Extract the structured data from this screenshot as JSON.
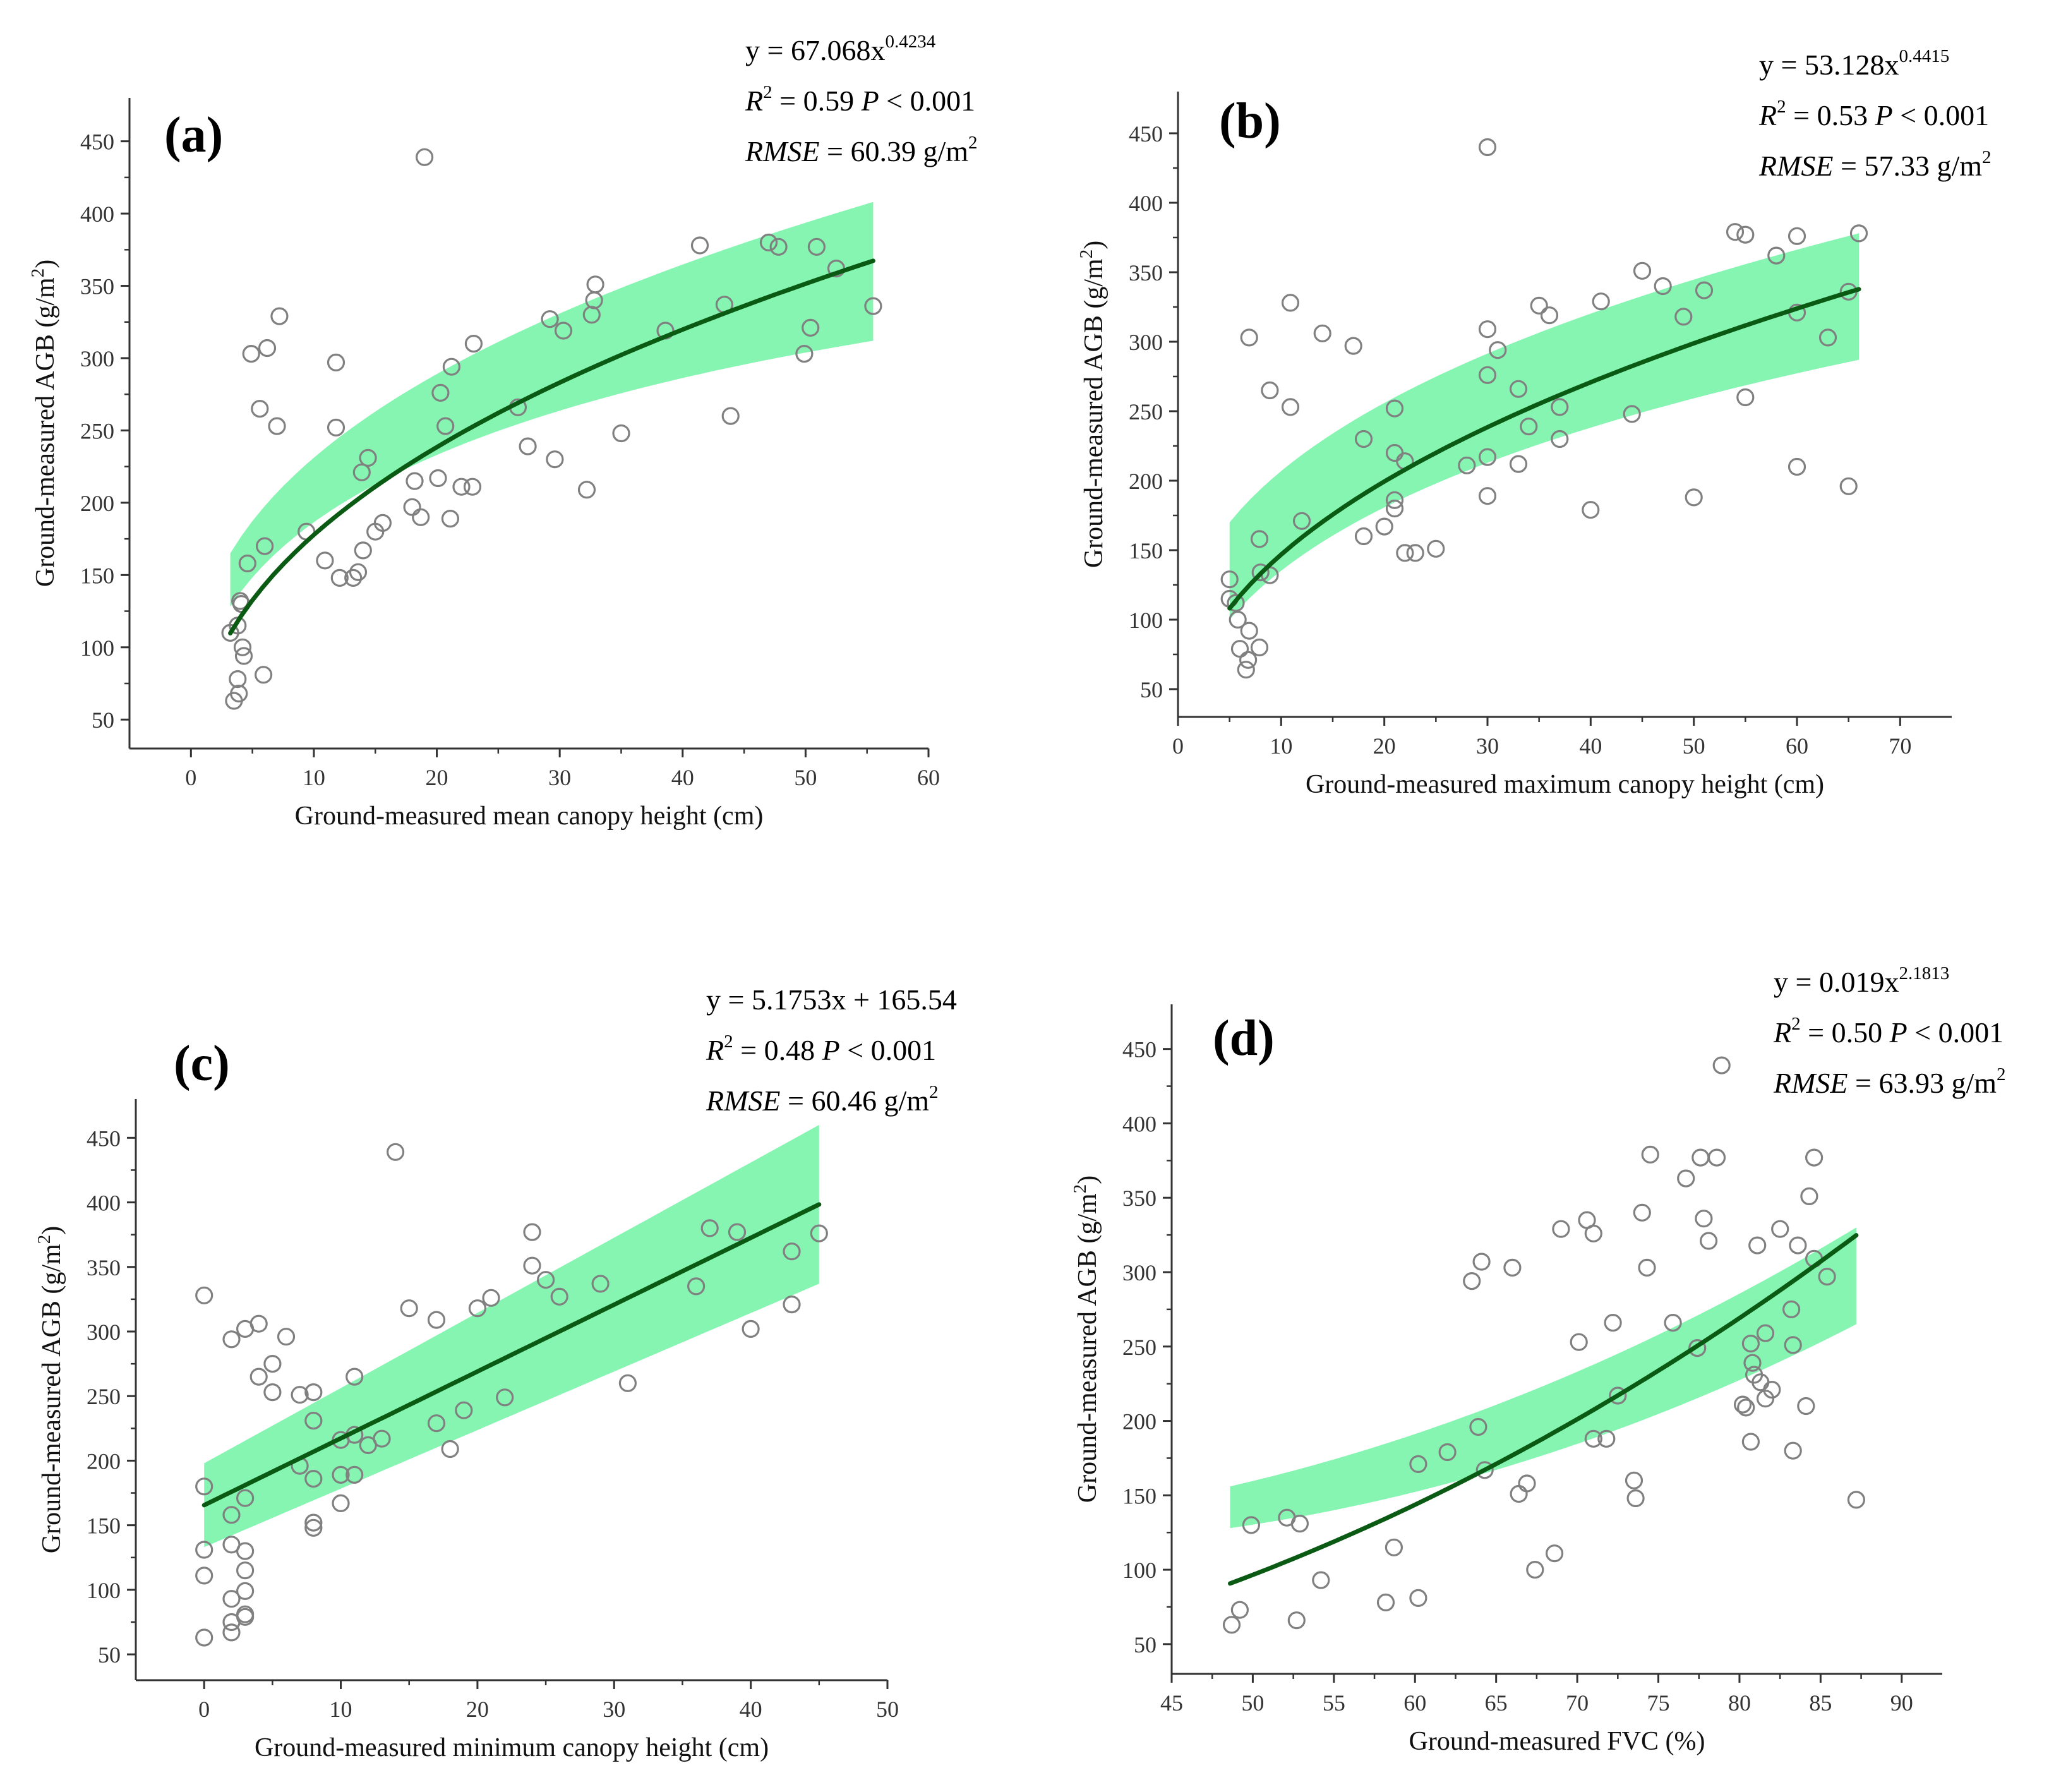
{
  "figure": {
    "colors": {
      "band": "#86f5b2",
      "line": "#0a5a14",
      "point": "#808080",
      "axis": "#333333"
    }
  },
  "chart_data": [
    {
      "id": "a",
      "type": "scatter",
      "label": "(a)",
      "xlabel": "Ground-measured mean canopy height (cm)",
      "ylabel": "Ground-measured AGB (g/m2)",
      "ylabel_parts": [
        "Ground-measured AGB (g/m",
        "2",
        ")"
      ],
      "xlim": [
        -5,
        60
      ],
      "ylim": [
        30,
        480
      ],
      "xticks": [
        0,
        10,
        20,
        30,
        40,
        50,
        60
      ],
      "yticks": [
        50,
        100,
        150,
        200,
        250,
        300,
        350,
        400,
        450
      ],
      "equation": {
        "line1_prefix": "y = 67.068x",
        "line1_sup": "0.4234",
        "line1_suffix": "",
        "r2": "0.59",
        "p": "< 0.001",
        "rmse": "60.39",
        "unit": "g/m",
        "unit_sup": "2"
      },
      "fit": {
        "kind": "power",
        "a": 67.068,
        "b": 0.4234,
        "x_range": [
          3.2,
          55.5
        ],
        "band_lower": [
          128,
          312
        ],
        "band_upper": [
          165,
          408
        ]
      },
      "points": [
        [
          3.2,
          110
        ],
        [
          3.5,
          63
        ],
        [
          3.8,
          115
        ],
        [
          3.8,
          78
        ],
        [
          3.9,
          68
        ],
        [
          4,
          132
        ],
        [
          4.1,
          130
        ],
        [
          4.2,
          100
        ],
        [
          4.3,
          94
        ],
        [
          4.6,
          158
        ],
        [
          4.9,
          303
        ],
        [
          5.6,
          265
        ],
        [
          5.9,
          81
        ],
        [
          6,
          170
        ],
        [
          6.2,
          307
        ],
        [
          7,
          253
        ],
        [
          7.2,
          329
        ],
        [
          9.4,
          180
        ],
        [
          10.9,
          160
        ],
        [
          11.8,
          297
        ],
        [
          11.8,
          252
        ],
        [
          12.1,
          148
        ],
        [
          13.2,
          148
        ],
        [
          13.6,
          152
        ],
        [
          13.9,
          221
        ],
        [
          14,
          167
        ],
        [
          14.4,
          231
        ],
        [
          15,
          180
        ],
        [
          15.6,
          186
        ],
        [
          18,
          197
        ],
        [
          18.2,
          215
        ],
        [
          18.7,
          190
        ],
        [
          19,
          439
        ],
        [
          20.1,
          217
        ],
        [
          20.3,
          276
        ],
        [
          20.7,
          253
        ],
        [
          21.1,
          189
        ],
        [
          21.2,
          294
        ],
        [
          22,
          211
        ],
        [
          22.9,
          211
        ],
        [
          23,
          310
        ],
        [
          26.6,
          266
        ],
        [
          27.4,
          239
        ],
        [
          29.2,
          327
        ],
        [
          29.6,
          230
        ],
        [
          30.3,
          319
        ],
        [
          32.2,
          209
        ],
        [
          32.6,
          330
        ],
        [
          32.8,
          340
        ],
        [
          32.9,
          351
        ],
        [
          35,
          248
        ],
        [
          38.6,
          319
        ],
        [
          41.4,
          378
        ],
        [
          43.4,
          337
        ],
        [
          43.9,
          260
        ],
        [
          47,
          380
        ],
        [
          47.8,
          377
        ],
        [
          49.9,
          303
        ],
        [
          50.4,
          321
        ],
        [
          50.9,
          377
        ],
        [
          52.5,
          362
        ],
        [
          55.5,
          336
        ]
      ]
    },
    {
      "id": "b",
      "type": "scatter",
      "label": "(b)",
      "xlabel": "Ground-measured maximum canopy height (cm)",
      "ylabel": "Ground-measured AGB (g/m2)",
      "ylabel_parts": [
        "Ground-measured AGB (g/m",
        "2",
        ")"
      ],
      "xlim": [
        0,
        75
      ],
      "ylim": [
        30,
        480
      ],
      "xticks": [
        0,
        10,
        20,
        30,
        40,
        50,
        60,
        70
      ],
      "yticks": [
        50,
        100,
        150,
        200,
        250,
        300,
        350,
        400,
        450
      ],
      "equation": {
        "line1_prefix": "y = 53.128x",
        "line1_sup": "0.4415",
        "line1_suffix": "",
        "r2": "0.53",
        "p": "< 0.001",
        "rmse": "57.33",
        "unit": "g/m",
        "unit_sup": "2"
      },
      "fit": {
        "kind": "power",
        "a": 53.128,
        "b": 0.4415,
        "x_range": [
          5,
          66
        ],
        "band_lower": [
          100,
          287
        ],
        "band_upper": [
          170,
          378
        ]
      },
      "points": [
        [
          5,
          129
        ],
        [
          5,
          115
        ],
        [
          5.6,
          112
        ],
        [
          5.8,
          100
        ],
        [
          6,
          79
        ],
        [
          6.6,
          64
        ],
        [
          6.8,
          71
        ],
        [
          6.9,
          92
        ],
        [
          6.9,
          303
        ],
        [
          7.9,
          80
        ],
        [
          7.9,
          158
        ],
        [
          8,
          134
        ],
        [
          8.9,
          132
        ],
        [
          8.9,
          265
        ],
        [
          10.9,
          253
        ],
        [
          10.9,
          328
        ],
        [
          12,
          171
        ],
        [
          14,
          306
        ],
        [
          17,
          297
        ],
        [
          18,
          230
        ],
        [
          18,
          160
        ],
        [
          20,
          167
        ],
        [
          21,
          252
        ],
        [
          21,
          220
        ],
        [
          21,
          186
        ],
        [
          21,
          180
        ],
        [
          22,
          214
        ],
        [
          22,
          148
        ],
        [
          23,
          148
        ],
        [
          25,
          151
        ],
        [
          28,
          211
        ],
        [
          30,
          440
        ],
        [
          30,
          309
        ],
        [
          30,
          276
        ],
        [
          30,
          217
        ],
        [
          30,
          189
        ],
        [
          31,
          294
        ],
        [
          33,
          266
        ],
        [
          33,
          212
        ],
        [
          34,
          239
        ],
        [
          35,
          326
        ],
        [
          36,
          319
        ],
        [
          37,
          253
        ],
        [
          37,
          230
        ],
        [
          40,
          179
        ],
        [
          41,
          329
        ],
        [
          44,
          248
        ],
        [
          45,
          351
        ],
        [
          47,
          340
        ],
        [
          49,
          318
        ],
        [
          50,
          188
        ],
        [
          51,
          337
        ],
        [
          54,
          379
        ],
        [
          55,
          377
        ],
        [
          55,
          260
        ],
        [
          58,
          362
        ],
        [
          60,
          376
        ],
        [
          60,
          321
        ],
        [
          60,
          210
        ],
        [
          63,
          303
        ],
        [
          65,
          336
        ],
        [
          65,
          196
        ],
        [
          66,
          378
        ]
      ]
    },
    {
      "id": "c",
      "type": "scatter",
      "label": "(c)",
      "xlabel": "Ground-measured minimum canopy height (cm)",
      "ylabel": "Ground-measured AGB (g/m2)",
      "ylabel_parts": [
        "Ground-measured AGB (g/m",
        "2",
        ")"
      ],
      "xlim": [
        -5,
        50
      ],
      "ylim": [
        30,
        480
      ],
      "xticks": [
        0,
        10,
        20,
        30,
        40,
        50
      ],
      "yticks": [
        50,
        100,
        150,
        200,
        250,
        300,
        350,
        400,
        450
      ],
      "equation": {
        "line1_prefix": "y = 5.1753x + 165.54",
        "line1_sup": "",
        "line1_suffix": "",
        "r2": "0.48",
        "p": "< 0.001",
        "rmse": "60.46",
        "unit": "g/m",
        "unit_sup": "2"
      },
      "fit": {
        "kind": "linear",
        "a": 5.1753,
        "b": 165.54,
        "x_range": [
          0,
          45
        ],
        "band_lower": [
          133,
          337
        ],
        "band_upper": [
          198,
          460
        ]
      },
      "points": [
        [
          0,
          63
        ],
        [
          0,
          111
        ],
        [
          0,
          131
        ],
        [
          0,
          180
        ],
        [
          0,
          328
        ],
        [
          2,
          67
        ],
        [
          2,
          75
        ],
        [
          2,
          93
        ],
        [
          2,
          135
        ],
        [
          2,
          158
        ],
        [
          2,
          294
        ],
        [
          3,
          79
        ],
        [
          3,
          81
        ],
        [
          3,
          99
        ],
        [
          3,
          115
        ],
        [
          3,
          130
        ],
        [
          3,
          171
        ],
        [
          3,
          302
        ],
        [
          4,
          306
        ],
        [
          4,
          265
        ],
        [
          5,
          253
        ],
        [
          5,
          275
        ],
        [
          6,
          296
        ],
        [
          7,
          251
        ],
        [
          7,
          196
        ],
        [
          8,
          253
        ],
        [
          8,
          231
        ],
        [
          8,
          186
        ],
        [
          8,
          152
        ],
        [
          8,
          148
        ],
        [
          10,
          216
        ],
        [
          10,
          189
        ],
        [
          10,
          167
        ],
        [
          11,
          265
        ],
        [
          11,
          220
        ],
        [
          11,
          189
        ],
        [
          12,
          212
        ],
        [
          13,
          217
        ],
        [
          14,
          439
        ],
        [
          15,
          318
        ],
        [
          17,
          309
        ],
        [
          17,
          229
        ],
        [
          18,
          209
        ],
        [
          19,
          239
        ],
        [
          20,
          318
        ],
        [
          21,
          326
        ],
        [
          22,
          249
        ],
        [
          24,
          377
        ],
        [
          24,
          351
        ],
        [
          25,
          340
        ],
        [
          26,
          327
        ],
        [
          29,
          337
        ],
        [
          31,
          260
        ],
        [
          36,
          335
        ],
        [
          37,
          380
        ],
        [
          39,
          377
        ],
        [
          40,
          302
        ],
        [
          43,
          362
        ],
        [
          43,
          321
        ],
        [
          45,
          376
        ]
      ]
    },
    {
      "id": "d",
      "type": "scatter",
      "label": "(d)",
      "xlabel": "Ground-measured FVC (%)",
      "ylabel": "Ground-measured AGB (g/m2)",
      "ylabel_parts": [
        "Ground-measured AGB (g/m",
        "2",
        ")"
      ],
      "xlim": [
        45,
        92.5
      ],
      "ylim": [
        30,
        480
      ],
      "xticks": [
        45,
        50,
        55,
        60,
        65,
        70,
        75,
        80,
        85,
        90
      ],
      "yticks": [
        50,
        100,
        150,
        200,
        250,
        300,
        350,
        400,
        450
      ],
      "equation": {
        "line1_prefix": "y = 0.019x",
        "line1_sup": "2.1813",
        "line1_suffix": "",
        "r2": "0.50",
        "p": "< 0.001",
        "rmse": "63.93",
        "unit": "g/m",
        "unit_sup": "2"
      },
      "fit": {
        "kind": "power",
        "a": 0.019,
        "b": 2.1813,
        "x_range": [
          48.6,
          87.2
        ],
        "band_lower": [
          128,
          265
        ],
        "band_upper": [
          156,
          330
        ]
      },
      "points": [
        [
          48.7,
          63
        ],
        [
          49.2,
          73
        ],
        [
          49.9,
          130
        ],
        [
          52.1,
          135
        ],
        [
          52.7,
          66
        ],
        [
          52.9,
          131
        ],
        [
          54.2,
          93
        ],
        [
          58.2,
          78
        ],
        [
          58.7,
          115
        ],
        [
          60.2,
          171
        ],
        [
          60.2,
          81
        ],
        [
          62,
          179
        ],
        [
          63.5,
          294
        ],
        [
          63.9,
          196
        ],
        [
          64.1,
          307
        ],
        [
          64.3,
          167
        ],
        [
          66,
          303
        ],
        [
          66.4,
          151
        ],
        [
          66.9,
          158
        ],
        [
          67.4,
          100
        ],
        [
          68.6,
          111
        ],
        [
          69,
          329
        ],
        [
          70.1,
          253
        ],
        [
          70.6,
          335
        ],
        [
          71,
          326
        ],
        [
          71,
          188
        ],
        [
          71.8,
          188
        ],
        [
          72.2,
          266
        ],
        [
          72.5,
          217
        ],
        [
          73.5,
          160
        ],
        [
          73.6,
          148
        ],
        [
          74,
          340
        ],
        [
          74.3,
          303
        ],
        [
          74.5,
          379
        ],
        [
          75.9,
          266
        ],
        [
          76.7,
          363
        ],
        [
          77.4,
          249
        ],
        [
          77.6,
          377
        ],
        [
          77.8,
          336
        ],
        [
          78.1,
          321
        ],
        [
          78.6,
          377
        ],
        [
          78.9,
          439
        ],
        [
          80.2,
          211
        ],
        [
          80.4,
          209
        ],
        [
          80.7,
          186
        ],
        [
          80.7,
          252
        ],
        [
          80.8,
          239
        ],
        [
          80.9,
          231
        ],
        [
          81.1,
          318
        ],
        [
          81.3,
          226
        ],
        [
          81.6,
          215
        ],
        [
          81.6,
          259
        ],
        [
          82,
          221
        ],
        [
          82.5,
          329
        ],
        [
          83.2,
          275
        ],
        [
          83.3,
          180
        ],
        [
          83.3,
          251
        ],
        [
          83.6,
          318
        ],
        [
          84.1,
          210
        ],
        [
          84.3,
          351
        ],
        [
          84.6,
          377
        ],
        [
          84.6,
          309
        ],
        [
          85.4,
          297
        ],
        [
          87.2,
          147
        ]
      ]
    }
  ]
}
